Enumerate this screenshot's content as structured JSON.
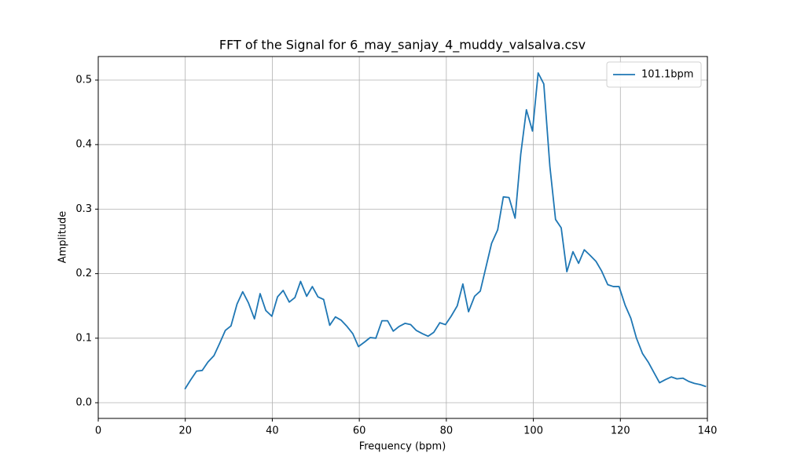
{
  "chart_data": {
    "type": "line",
    "title": "FFT of the Signal for 6_may_sanjay_4_muddy_valsalva.csv",
    "x_label": "Frequency (bpm)",
    "y_label": "Amplitude",
    "x": [
      19.9,
      21.2,
      22.6,
      23.9,
      25.2,
      26.6,
      27.9,
      29.2,
      30.5,
      31.9,
      33.2,
      34.5,
      35.9,
      37.2,
      38.5,
      39.9,
      41.2,
      42.5,
      43.9,
      45.2,
      46.5,
      47.9,
      49.2,
      50.5,
      51.8,
      53.2,
      54.5,
      55.8,
      57.2,
      58.5,
      59.8,
      61.2,
      62.5,
      63.8,
      65.2,
      66.5,
      67.8,
      69.1,
      70.5,
      71.8,
      73.1,
      74.5,
      75.8,
      77.1,
      78.5,
      79.8,
      81.1,
      82.5,
      83.8,
      85.1,
      86.5,
      87.8,
      89.1,
      90.4,
      91.8,
      93.1,
      94.4,
      95.8,
      97.1,
      98.4,
      99.8,
      101.1,
      102.4,
      103.8,
      105.1,
      106.4,
      107.7,
      109.1,
      110.4,
      111.7,
      113.1,
      114.4,
      115.7,
      117.1,
      118.4,
      119.7,
      121.1,
      122.4,
      123.7,
      125.1,
      126.4,
      127.7,
      129.0,
      130.4,
      131.7,
      133.0,
      134.4,
      135.7,
      137.0,
      138.4,
      139.7
    ],
    "series": [
      {
        "name": "101.1bpm",
        "color": "#1f77b4",
        "values": [
          0.021,
          0.035,
          0.049,
          0.05,
          0.063,
          0.073,
          0.092,
          0.112,
          0.119,
          0.153,
          0.172,
          0.155,
          0.13,
          0.169,
          0.143,
          0.134,
          0.164,
          0.174,
          0.156,
          0.163,
          0.188,
          0.165,
          0.18,
          0.164,
          0.16,
          0.12,
          0.133,
          0.128,
          0.118,
          0.107,
          0.087,
          0.094,
          0.101,
          0.1,
          0.127,
          0.127,
          0.111,
          0.118,
          0.123,
          0.121,
          0.112,
          0.107,
          0.103,
          0.109,
          0.124,
          0.121,
          0.134,
          0.15,
          0.184,
          0.141,
          0.165,
          0.173,
          0.21,
          0.247,
          0.268,
          0.319,
          0.318,
          0.286,
          0.385,
          0.454,
          0.421,
          0.511,
          0.494,
          0.366,
          0.284,
          0.271,
          0.203,
          0.234,
          0.216,
          0.237,
          0.228,
          0.219,
          0.204,
          0.183,
          0.18,
          0.18,
          0.151,
          0.131,
          0.1,
          0.076,
          0.063,
          0.047,
          0.031,
          0.036,
          0.04,
          0.037,
          0.038,
          0.033,
          0.03,
          0.028,
          0.025
        ]
      }
    ],
    "xlim": [
      0,
      140
    ],
    "xticks": [
      0,
      20,
      40,
      60,
      80,
      100,
      120,
      140
    ],
    "ylim": [
      -0.0243,
      0.5365
    ],
    "yticks": [
      {
        "value": 0,
        "label": "0.0"
      },
      0.1,
      0.2,
      0.3,
      0.4,
      0.5
    ],
    "grid": true,
    "legend": "upper right"
  }
}
